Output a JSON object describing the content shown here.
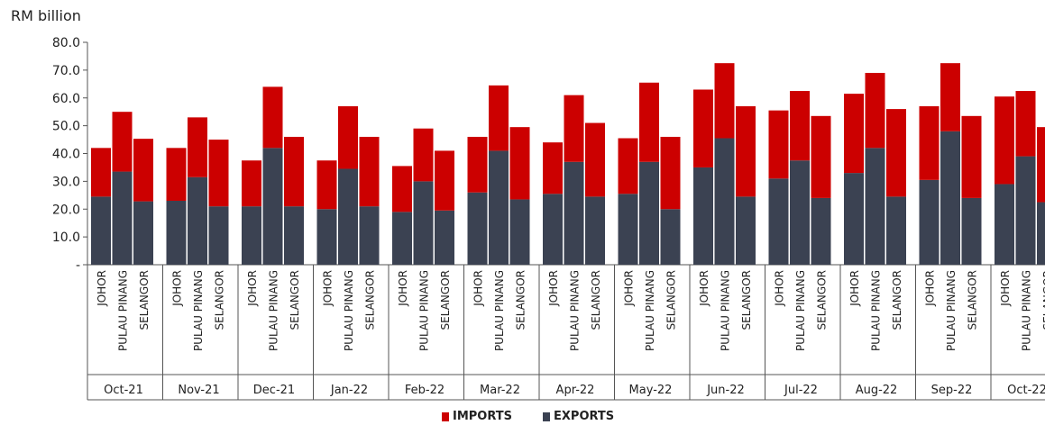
{
  "colors": {
    "imports": "#cc0000",
    "exports": "#3b4252",
    "axis": "#555555",
    "text": "#222222"
  },
  "chart_data": {
    "type": "bar",
    "stacked": true,
    "ylabel": "RM billion",
    "ylim": [
      0,
      80
    ],
    "yticks": [
      "-",
      "10.0",
      "20.0",
      "30.0",
      "40.0",
      "50.0",
      "60.0",
      "70.0",
      "80.0"
    ],
    "states": [
      "JOHOR",
      "PULAU PINANG",
      "SELANGOR"
    ],
    "months": [
      "Oct-21",
      "Nov-21",
      "Dec-21",
      "Jan-22",
      "Feb-22",
      "Mar-22",
      "Apr-22",
      "May-22",
      "Jun-22",
      "Jul-22",
      "Aug-22",
      "Sep-22",
      "Oct-22"
    ],
    "series": [
      {
        "name": "EXPORTS",
        "values": [
          [
            24.5,
            33.5,
            22.8
          ],
          [
            23.0,
            31.5,
            21.0
          ],
          [
            21.0,
            42.0,
            21.0
          ],
          [
            20.0,
            34.5,
            21.0
          ],
          [
            19.0,
            30.0,
            19.5
          ],
          [
            26.0,
            41.0,
            23.5
          ],
          [
            25.5,
            37.0,
            24.5
          ],
          [
            25.5,
            37.0,
            20.0
          ],
          [
            35.0,
            45.5,
            24.5
          ],
          [
            31.0,
            37.5,
            24.0
          ],
          [
            33.0,
            42.0,
            24.5
          ],
          [
            30.5,
            48.0,
            24.0
          ],
          [
            29.0,
            39.0,
            22.5
          ]
        ]
      },
      {
        "name": "IMPORTS",
        "values": [
          [
            17.5,
            21.5,
            22.5
          ],
          [
            19.0,
            21.5,
            24.0
          ],
          [
            16.5,
            22.0,
            25.0
          ],
          [
            17.5,
            22.5,
            25.0
          ],
          [
            16.5,
            19.0,
            21.5
          ],
          [
            20.0,
            23.5,
            26.0
          ],
          [
            18.5,
            24.0,
            26.5
          ],
          [
            20.0,
            28.5,
            26.0
          ],
          [
            28.0,
            27.0,
            32.5
          ],
          [
            24.5,
            25.0,
            29.5
          ],
          [
            28.5,
            27.0,
            31.5
          ],
          [
            26.5,
            24.5,
            29.5
          ],
          [
            31.5,
            23.5,
            27.0
          ]
        ]
      }
    ],
    "legend": [
      "IMPORTS",
      "EXPORTS"
    ],
    "legend_position": "bottom",
    "grid": false
  }
}
